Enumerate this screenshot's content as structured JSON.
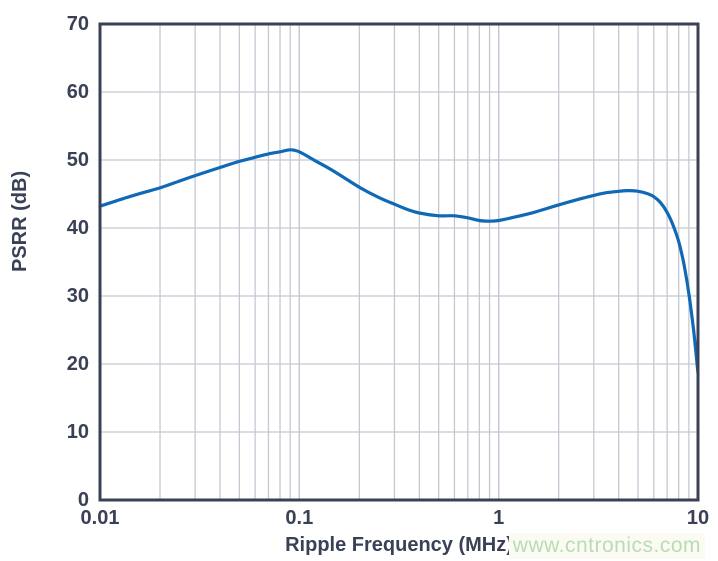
{
  "chart_data": {
    "type": "line",
    "title": "",
    "xlabel": "Ripple Frequency (MHz)",
    "ylabel": "PSRR (dB)",
    "x_scale": "log",
    "xlim": [
      0.01,
      10
    ],
    "ylim": [
      0,
      70
    ],
    "grid": "major and minor vertical (log decades), major horizontal every 10 dB",
    "legend": "none",
    "xticks": [
      {
        "value": 0.01,
        "label": "0.01"
      },
      {
        "value": 0.1,
        "label": "0.1"
      },
      {
        "value": 1,
        "label": "1"
      },
      {
        "value": 10,
        "label": "10"
      }
    ],
    "yticks": [
      {
        "value": 0,
        "label": "0"
      },
      {
        "value": 10,
        "label": "10"
      },
      {
        "value": 20,
        "label": "20"
      },
      {
        "value": 30,
        "label": "30"
      },
      {
        "value": 40,
        "label": "40"
      },
      {
        "value": 50,
        "label": "50"
      },
      {
        "value": 60,
        "label": "60"
      },
      {
        "value": 70,
        "label": "70"
      }
    ],
    "series": [
      {
        "name": "PSRR",
        "color": "#1069b4",
        "points": [
          [
            0.01,
            43.2
          ],
          [
            0.013,
            44.3
          ],
          [
            0.016,
            45.1
          ],
          [
            0.02,
            45.9
          ],
          [
            0.025,
            46.9
          ],
          [
            0.03,
            47.7
          ],
          [
            0.04,
            48.9
          ],
          [
            0.05,
            49.8
          ],
          [
            0.06,
            50.4
          ],
          [
            0.07,
            50.9
          ],
          [
            0.08,
            51.2
          ],
          [
            0.09,
            51.5
          ],
          [
            0.1,
            51.2
          ],
          [
            0.12,
            49.9
          ],
          [
            0.15,
            48.3
          ],
          [
            0.2,
            46.0
          ],
          [
            0.25,
            44.5
          ],
          [
            0.3,
            43.5
          ],
          [
            0.35,
            42.7
          ],
          [
            0.4,
            42.2
          ],
          [
            0.5,
            41.8
          ],
          [
            0.6,
            41.8
          ],
          [
            0.7,
            41.5
          ],
          [
            0.8,
            41.1
          ],
          [
            0.9,
            41.0
          ],
          [
            1.0,
            41.1
          ],
          [
            1.2,
            41.6
          ],
          [
            1.5,
            42.3
          ],
          [
            2.0,
            43.4
          ],
          [
            2.5,
            44.2
          ],
          [
            3.0,
            44.8
          ],
          [
            3.5,
            45.2
          ],
          [
            4.0,
            45.4
          ],
          [
            4.5,
            45.5
          ],
          [
            5.0,
            45.4
          ],
          [
            5.5,
            45.1
          ],
          [
            6.0,
            44.6
          ],
          [
            6.5,
            43.7
          ],
          [
            7.0,
            42.3
          ],
          [
            7.5,
            40.4
          ],
          [
            8.0,
            38.0
          ],
          [
            8.5,
            34.7
          ],
          [
            9.0,
            30.3
          ],
          [
            9.5,
            25.0
          ],
          [
            10.0,
            18.6
          ]
        ]
      }
    ],
    "colors": {
      "axis_border": "#3a4156",
      "gridline": "#c5c8d3",
      "label_text": "#3a4156",
      "background": "#ffffff"
    }
  },
  "watermark": {
    "text": "www.cntronics.com",
    "color": "#b9dcb4"
  }
}
